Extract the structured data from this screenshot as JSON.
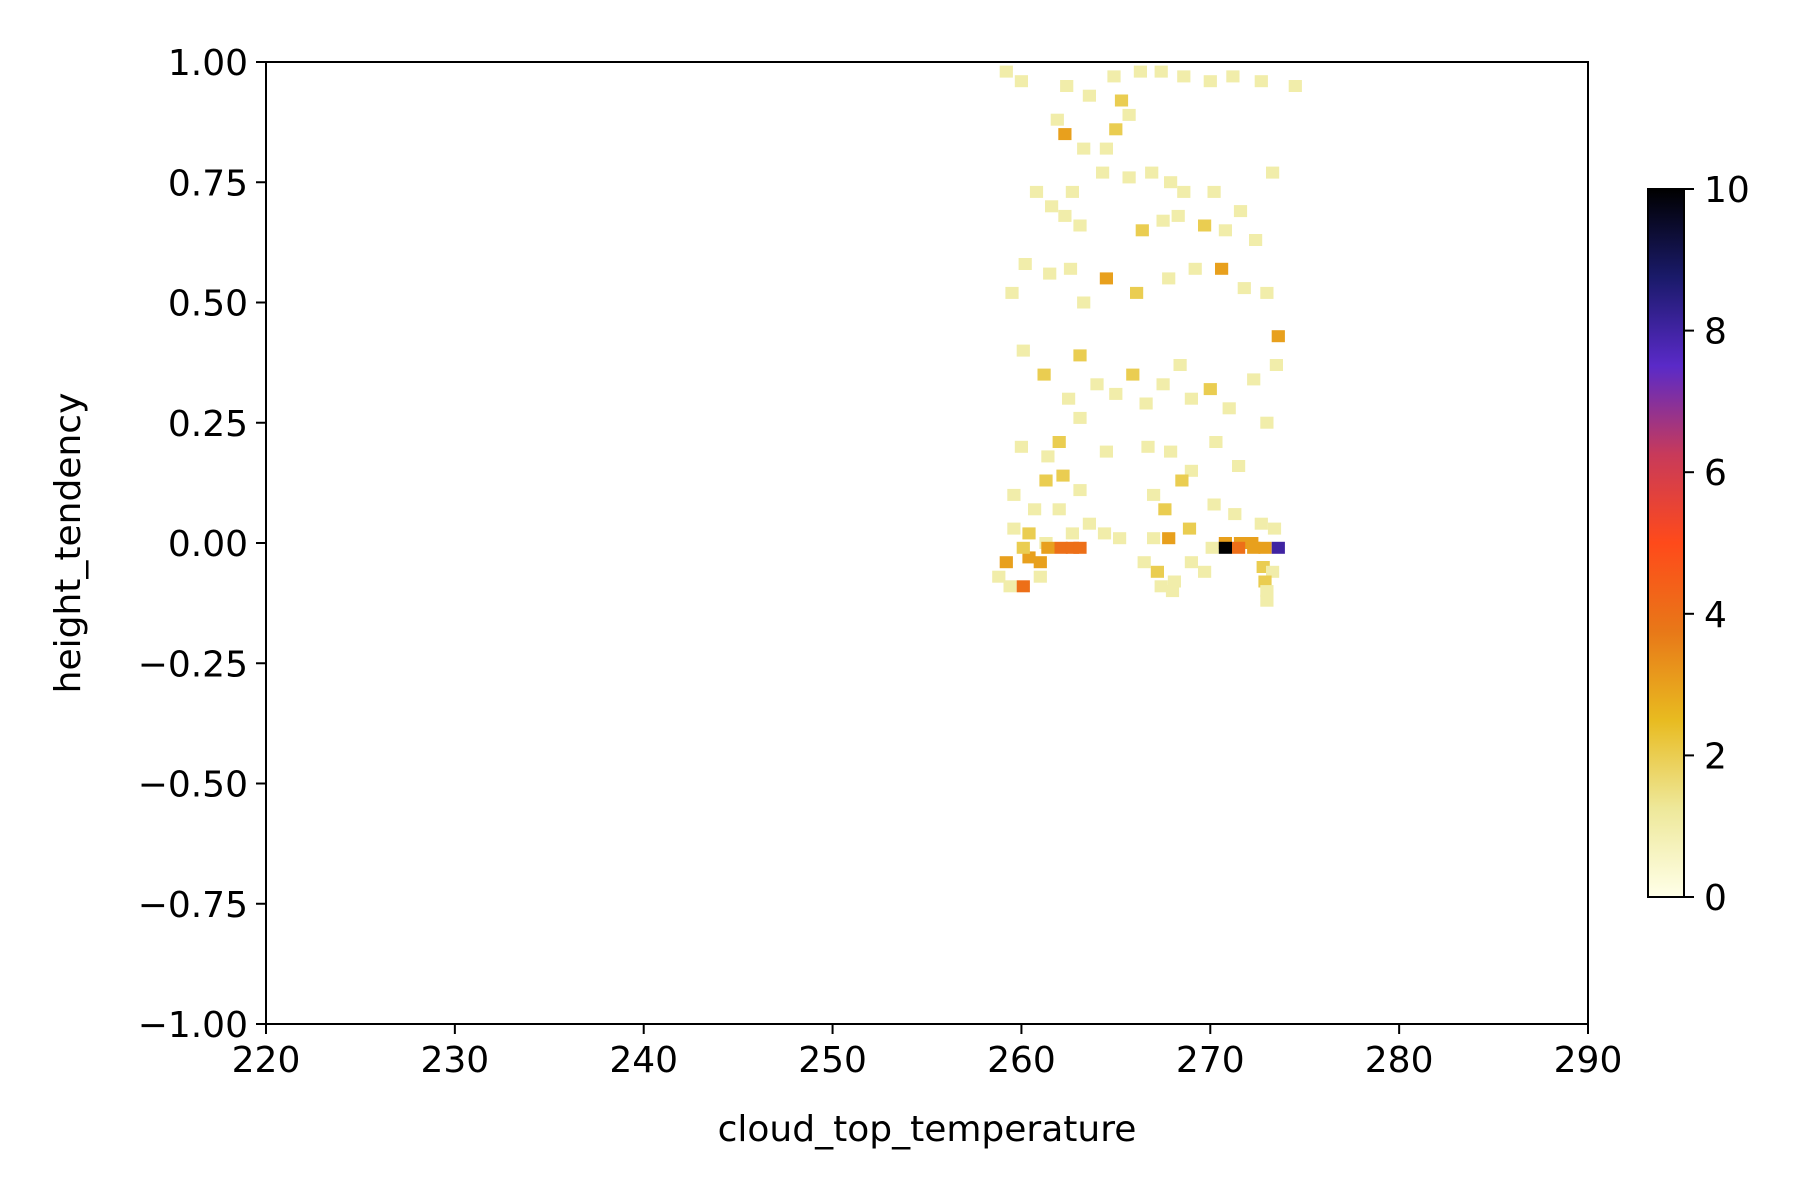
{
  "chart_data": {
    "type": "heatmap",
    "title": "",
    "xlabel": "cloud_top_temperature",
    "ylabel": "height_tendency",
    "xlim": [
      220,
      290
    ],
    "ylim": [
      -1.0,
      1.0
    ],
    "x_ticks": [
      "220",
      "230",
      "240",
      "250",
      "260",
      "270",
      "280",
      "290"
    ],
    "y_ticks": [
      "−1.00",
      "−0.75",
      "−0.50",
      "−0.25",
      "0.00",
      "0.25",
      "0.50",
      "0.75",
      "1.00"
    ],
    "colorbar": {
      "min": 0,
      "max": 10,
      "ticks": [
        "0",
        "2",
        "4",
        "6",
        "8",
        "10"
      ],
      "colormap": "CMRmap_r",
      "color_stops": [
        "#ffffe8",
        "#eee89a",
        "#e8bb20",
        "#e87818",
        "#ff4a1a",
        "#c83a5a",
        "#5a2ac8",
        "#1a1a6a",
        "#000000"
      ]
    },
    "cell_size": {
      "dx": 0.7,
      "dy": 0.025
    },
    "cells": [
      [
        261.9,
        0.88,
        1
      ],
      [
        262.3,
        0.85,
        3
      ],
      [
        263.3,
        0.82,
        1
      ],
      [
        265.0,
        0.86,
        2
      ],
      [
        264.5,
        0.82,
        1
      ],
      [
        259.2,
        0.98,
        1
      ],
      [
        260.0,
        0.96,
        1
      ],
      [
        262.4,
        0.95,
        1
      ],
      [
        263.6,
        0.93,
        1
      ],
      [
        264.9,
        0.97,
        1
      ],
      [
        266.3,
        0.98,
        1
      ],
      [
        267.4,
        0.98,
        1
      ],
      [
        268.6,
        0.97,
        1
      ],
      [
        270.0,
        0.96,
        1
      ],
      [
        271.2,
        0.97,
        1
      ],
      [
        272.7,
        0.96,
        1
      ],
      [
        274.5,
        0.95,
        1
      ],
      [
        265.3,
        0.92,
        2
      ],
      [
        265.7,
        0.89,
        1
      ],
      [
        260.8,
        0.73,
        1
      ],
      [
        262.7,
        0.73,
        1
      ],
      [
        264.3,
        0.77,
        1
      ],
      [
        265.7,
        0.76,
        1
      ],
      [
        266.9,
        0.77,
        1
      ],
      [
        267.9,
        0.75,
        1
      ],
      [
        268.6,
        0.73,
        1
      ],
      [
        270.2,
        0.73,
        1
      ],
      [
        271.6,
        0.69,
        1
      ],
      [
        273.3,
        0.77,
        1
      ],
      [
        261.6,
        0.7,
        1
      ],
      [
        262.3,
        0.68,
        1
      ],
      [
        263.1,
        0.66,
        1
      ],
      [
        266.4,
        0.65,
        2
      ],
      [
        267.5,
        0.67,
        1
      ],
      [
        268.3,
        0.68,
        1
      ],
      [
        269.7,
        0.66,
        2
      ],
      [
        270.8,
        0.65,
        1
      ],
      [
        272.4,
        0.63,
        1
      ],
      [
        259.5,
        0.52,
        1
      ],
      [
        260.2,
        0.58,
        1
      ],
      [
        261.5,
        0.56,
        1
      ],
      [
        262.6,
        0.57,
        1
      ],
      [
        263.3,
        0.5,
        1
      ],
      [
        264.5,
        0.55,
        3
      ],
      [
        266.1,
        0.52,
        2
      ],
      [
        267.8,
        0.55,
        1
      ],
      [
        269.2,
        0.57,
        1
      ],
      [
        270.6,
        0.57,
        3
      ],
      [
        271.8,
        0.53,
        1
      ],
      [
        273.0,
        0.52,
        1
      ],
      [
        273.6,
        0.43,
        3
      ],
      [
        260.1,
        0.4,
        1
      ],
      [
        261.2,
        0.35,
        2
      ],
      [
        262.5,
        0.3,
        1
      ],
      [
        263.1,
        0.39,
        2
      ],
      [
        264.0,
        0.33,
        1
      ],
      [
        265.0,
        0.31,
        1
      ],
      [
        265.9,
        0.35,
        2
      ],
      [
        266.6,
        0.29,
        1
      ],
      [
        267.5,
        0.33,
        1
      ],
      [
        268.4,
        0.37,
        1
      ],
      [
        269.0,
        0.3,
        1
      ],
      [
        270.0,
        0.32,
        2
      ],
      [
        271.0,
        0.28,
        1
      ],
      [
        272.3,
        0.34,
        1
      ],
      [
        273.5,
        0.37,
        1
      ],
      [
        260.0,
        0.2,
        1
      ],
      [
        261.4,
        0.18,
        1
      ],
      [
        262.0,
        0.21,
        2
      ],
      [
        263.1,
        0.26,
        1
      ],
      [
        264.5,
        0.19,
        1
      ],
      [
        266.7,
        0.2,
        1
      ],
      [
        267.9,
        0.19,
        1
      ],
      [
        269.0,
        0.15,
        1
      ],
      [
        270.3,
        0.21,
        1
      ],
      [
        271.5,
        0.16,
        1
      ],
      [
        273.0,
        0.25,
        1
      ],
      [
        259.6,
        0.1,
        1
      ],
      [
        260.7,
        0.07,
        1
      ],
      [
        261.3,
        0.13,
        2
      ],
      [
        262.2,
        0.14,
        2
      ],
      [
        263.1,
        0.11,
        1
      ],
      [
        262.0,
        0.07,
        1
      ],
      [
        263.6,
        0.04,
        1
      ],
      [
        264.4,
        0.02,
        1
      ],
      [
        267.0,
        0.1,
        1
      ],
      [
        267.6,
        0.07,
        2
      ],
      [
        268.5,
        0.13,
        2
      ],
      [
        270.2,
        0.08,
        1
      ],
      [
        271.3,
        0.06,
        1
      ],
      [
        272.7,
        0.04,
        1
      ],
      [
        273.4,
        0.03,
        1
      ],
      [
        259.6,
        0.03,
        1
      ],
      [
        260.4,
        0.02,
        2
      ],
      [
        261.3,
        0.0,
        1
      ],
      [
        262.7,
        0.02,
        1
      ],
      [
        265.2,
        0.01,
        1
      ],
      [
        267.0,
        0.01,
        1
      ],
      [
        267.8,
        0.01,
        3
      ],
      [
        268.9,
        0.03,
        2
      ],
      [
        270.1,
        -0.01,
        1
      ],
      [
        272.0,
        0.0,
        1
      ],
      [
        270.8,
        0.0,
        3
      ],
      [
        271.6,
        0.0,
        3
      ],
      [
        272.2,
        0.0,
        3
      ],
      [
        270.8,
        -0.01,
        10
      ],
      [
        271.5,
        -0.01,
        4
      ],
      [
        272.3,
        -0.01,
        3
      ],
      [
        272.9,
        -0.01,
        3
      ],
      [
        273.6,
        -0.01,
        8
      ],
      [
        259.2,
        -0.04,
        3
      ],
      [
        260.4,
        -0.03,
        3
      ],
      [
        261.0,
        -0.04,
        3
      ],
      [
        262.1,
        -0.01,
        4
      ],
      [
        262.7,
        -0.01,
        4
      ],
      [
        263.1,
        -0.01,
        4
      ],
      [
        260.1,
        -0.01,
        2
      ],
      [
        261.4,
        -0.01,
        3
      ],
      [
        258.8,
        -0.07,
        1
      ],
      [
        259.4,
        -0.09,
        1
      ],
      [
        260.1,
        -0.09,
        4
      ],
      [
        261.0,
        -0.07,
        1
      ],
      [
        266.5,
        -0.04,
        1
      ],
      [
        267.2,
        -0.06,
        2
      ],
      [
        268.1,
        -0.08,
        1
      ],
      [
        269.0,
        -0.04,
        1
      ],
      [
        269.7,
        -0.06,
        1
      ],
      [
        272.8,
        -0.05,
        2
      ],
      [
        273.3,
        -0.06,
        1
      ],
      [
        272.9,
        -0.08,
        2
      ],
      [
        273.0,
        -0.1,
        1
      ],
      [
        273.0,
        -0.12,
        1
      ],
      [
        268.0,
        -0.1,
        1
      ],
      [
        267.4,
        -0.09,
        1
      ]
    ]
  }
}
